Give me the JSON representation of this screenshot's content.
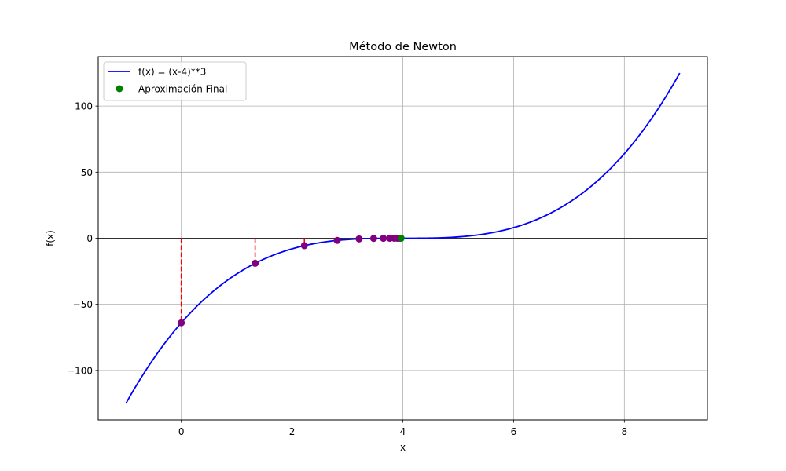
{
  "chart_data": {
    "type": "line",
    "title": "Método de Newton",
    "xlabel": "x",
    "ylabel": "f(x)",
    "xlim": [
      -1.5,
      9.5
    ],
    "ylim": [
      -137.5,
      137.5
    ],
    "x_ticks": [
      0,
      2,
      4,
      6,
      8
    ],
    "y_ticks": [
      -100,
      -50,
      0,
      50,
      100
    ],
    "x_tick_labels": [
      "0",
      "2",
      "4",
      "6",
      "8"
    ],
    "y_tick_labels": [
      "−100",
      "−50",
      "0",
      "50",
      "100"
    ],
    "grid": true,
    "legend_position": "top-left",
    "series": [
      {
        "name": "f(x) = (x-4)**3",
        "kind": "line",
        "function": "(x-4)^3",
        "domain": [
          -1,
          9
        ],
        "color": "#0000ff"
      },
      {
        "kind": "scatter",
        "color": "#800080",
        "x": [
          0,
          1.333,
          2.222,
          2.815,
          3.21,
          3.473,
          3.649,
          3.766,
          3.844,
          3.896,
          3.931,
          3.954
        ],
        "y": [
          -64,
          -18.96,
          -5.62,
          -1.66,
          -0.49,
          -0.15,
          -0.04,
          -0.01,
          0,
          0,
          0,
          0
        ]
      },
      {
        "name": "Aproximación Final",
        "kind": "scatter",
        "color": "#008000",
        "x": [
          3.97
        ],
        "y": [
          0
        ]
      },
      {
        "kind": "vertical-dashed-lines",
        "color": "#ff0000",
        "x": [
          0,
          1.333,
          2.222
        ],
        "y_from": [
          0,
          0,
          0
        ],
        "y_to": [
          -64,
          -18.96,
          -5.62
        ]
      },
      {
        "kind": "horizontal-line",
        "color": "#000000",
        "y": 0
      }
    ],
    "legend": [
      {
        "label": "f(x) = (x-4)**3",
        "marker": "line",
        "color": "#0000ff"
      },
      {
        "label": "Aproximación Final",
        "marker": "dot",
        "color": "#008000"
      }
    ]
  }
}
